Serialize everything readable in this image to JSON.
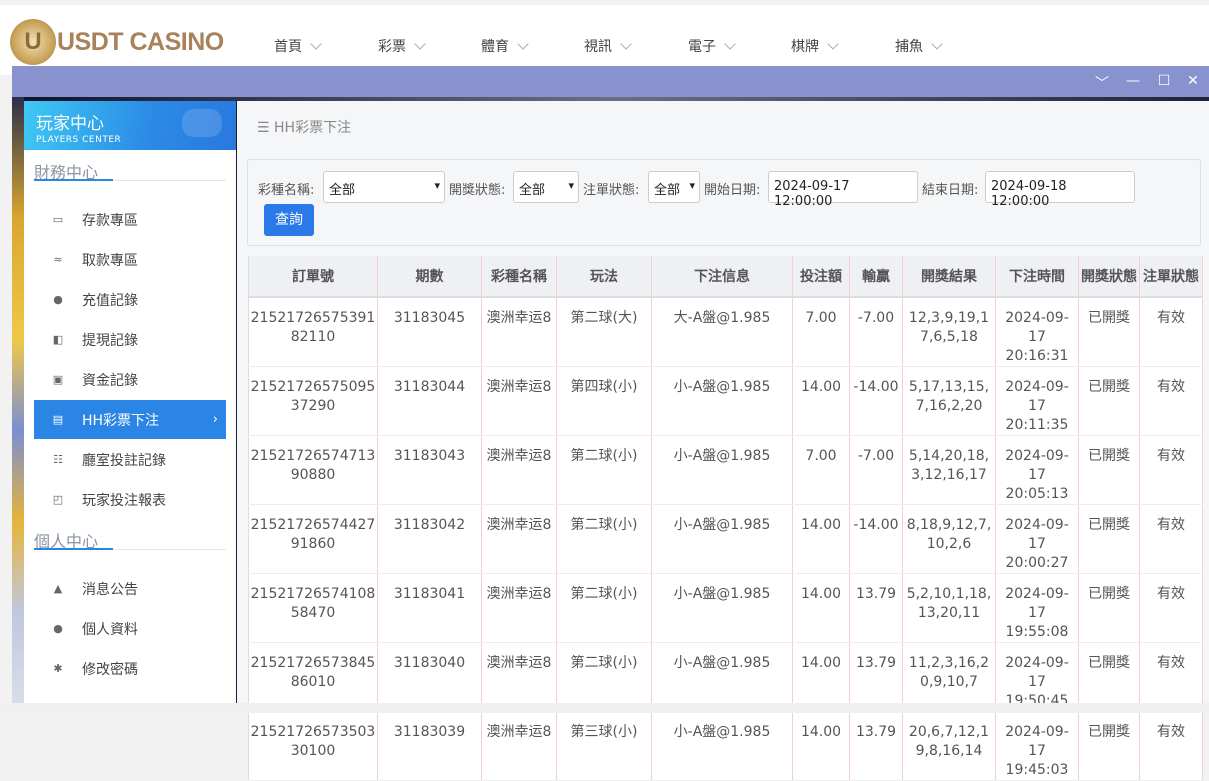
{
  "brand": {
    "logo_text": "USDT CASINO",
    "coin_letter": "U"
  },
  "nav": [
    "首頁",
    "彩票",
    "體育",
    "視訊",
    "電子",
    "棋牌",
    "捕魚"
  ],
  "window_controls": {
    "collapse": "﹀",
    "minimize": "—",
    "maximize": "☐",
    "close": "✕"
  },
  "sidebar": {
    "title": "玩家中心",
    "subtitle": "PLAYERS CENTER",
    "sections": [
      {
        "label": "財務中心",
        "items": [
          {
            "label": "存款專區",
            "icon": "card-icon"
          },
          {
            "label": "取款專區",
            "icon": "hand-money-icon"
          },
          {
            "label": "充值記錄",
            "icon": "money-bag-icon"
          },
          {
            "label": "提現記錄",
            "icon": "wallet-icon"
          },
          {
            "label": "資金記錄",
            "icon": "safe-icon"
          },
          {
            "label": "HH彩票下注",
            "icon": "list-icon",
            "active": true
          },
          {
            "label": "廳室投註記錄",
            "icon": "bullet-list-icon"
          },
          {
            "label": "玩家投注報表",
            "icon": "chart-icon"
          }
        ]
      },
      {
        "label": "個人中心",
        "items": [
          {
            "label": "消息公告",
            "icon": "bell-icon"
          },
          {
            "label": "個人資料",
            "icon": "user-icon"
          },
          {
            "label": "修改密碼",
            "icon": "gear-icon"
          }
        ]
      }
    ]
  },
  "breadcrumb": "HH彩票下注",
  "filters": {
    "lottery_label": "彩種名稱:",
    "lottery_value": "全部",
    "draw_status_label": "開獎狀態:",
    "draw_status_value": "全部",
    "bet_status_label": "注單狀態:",
    "bet_status_value": "全部",
    "start_label": "開始日期:",
    "start_value": "2024-09-17 12:00:00",
    "end_label": "結束日期:",
    "end_value": "2024-09-18 12:00:00",
    "query_button": "查詢"
  },
  "table": {
    "columns": [
      "訂單號",
      "期數",
      "彩種名稱",
      "玩法",
      "下注信息",
      "投注額",
      "輸贏",
      "開獎結果",
      "下注時間",
      "開獎狀態",
      "注單狀態"
    ],
    "rows": [
      [
        "2152172657539182110",
        "31183045",
        "澳洲幸运8",
        "第二球(大)",
        "大-A盤@1.985",
        "7.00",
        "-7.00",
        "12,3,9,19,17,6,5,18",
        "2024-09-17 20:16:31",
        "已開獎",
        "有效"
      ],
      [
        "2152172657509537290",
        "31183044",
        "澳洲幸运8",
        "第四球(小)",
        "小-A盤@1.985",
        "14.00",
        "-14.00",
        "5,17,13,15,7,16,2,20",
        "2024-09-17 20:11:35",
        "已開獎",
        "有效"
      ],
      [
        "2152172657471390880",
        "31183043",
        "澳洲幸运8",
        "第二球(小)",
        "小-A盤@1.985",
        "7.00",
        "-7.00",
        "5,14,20,18,3,12,16,17",
        "2024-09-17 20:05:13",
        "已開獎",
        "有效"
      ],
      [
        "2152172657442791860",
        "31183042",
        "澳洲幸运8",
        "第二球(小)",
        "小-A盤@1.985",
        "14.00",
        "-14.00",
        "8,18,9,12,7,10,2,6",
        "2024-09-17 20:00:27",
        "已開獎",
        "有效"
      ],
      [
        "2152172657410858470",
        "31183041",
        "澳洲幸运8",
        "第二球(小)",
        "小-A盤@1.985",
        "14.00",
        "13.79",
        "5,2,10,1,18,13,20,11",
        "2024-09-17 19:55:08",
        "已開獎",
        "有效"
      ],
      [
        "2152172657384586010",
        "31183040",
        "澳洲幸运8",
        "第二球(小)",
        "小-A盤@1.985",
        "14.00",
        "13.79",
        "11,2,3,16,20,9,10,7",
        "2024-09-17 19:50:45",
        "已開獎",
        "有效"
      ],
      [
        "2152172657350330100",
        "31183039",
        "澳洲幸运8",
        "第三球(小)",
        "小-A盤@1.985",
        "14.00",
        "13.79",
        "20,6,7,12,19,8,16,14",
        "2024-09-17 19:45:03",
        "已開獎",
        "有效"
      ]
    ]
  },
  "colors": {
    "accent": "#2b85e4",
    "titlebar": "#8792cf",
    "button": "#2b78e8"
  }
}
